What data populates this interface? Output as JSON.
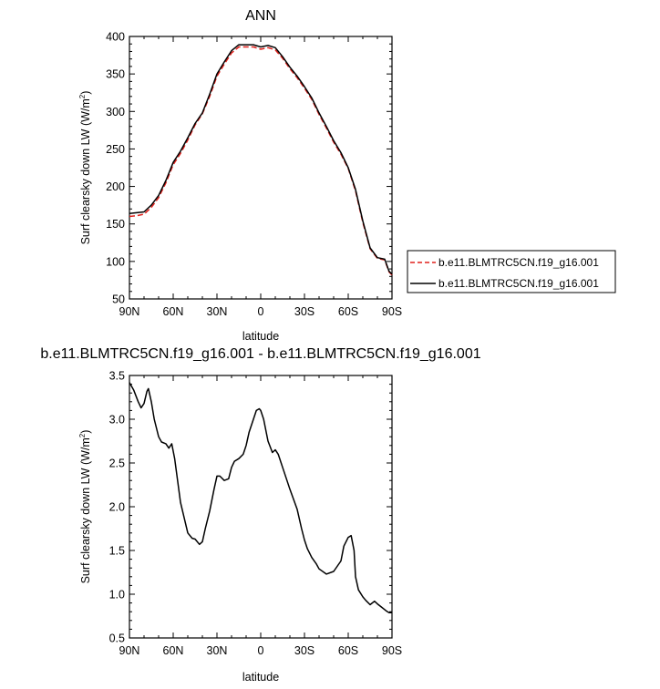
{
  "chart_data": [
    {
      "type": "line",
      "title": "ANN",
      "xlabel": "latitude",
      "ylabel": "Surf clearsky down LW (W/m",
      "ylabel_sup": "2",
      "ylabel_end": ")",
      "xlim": [
        90,
        -90
      ],
      "ylim": [
        50,
        400
      ],
      "xticks": [
        {
          "value": 90,
          "label": "90N"
        },
        {
          "value": 60,
          "label": "60N"
        },
        {
          "value": 30,
          "label": "30N"
        },
        {
          "value": 0,
          "label": "0"
        },
        {
          "value": -30,
          "label": "30S"
        },
        {
          "value": -60,
          "label": "60S"
        },
        {
          "value": -90,
          "label": "90S"
        }
      ],
      "yticks": [
        50,
        100,
        150,
        200,
        250,
        300,
        350,
        400
      ],
      "legend_position": "right",
      "series": [
        {
          "name": "b.e11.BLMTRC5CN.f19_g16.001",
          "color": "#e0201b",
          "dash": "dashed",
          "x": [
            90,
            85,
            80,
            75,
            70,
            65,
            60,
            55,
            50,
            45,
            40,
            35,
            30,
            25,
            20,
            15,
            10,
            5,
            0,
            -5,
            -10,
            -15,
            -20,
            -25,
            -30,
            -35,
            -40,
            -45,
            -50,
            -55,
            -60,
            -65,
            -70,
            -75,
            -80,
            -85,
            -88,
            -90
          ],
          "y": [
            160,
            161,
            163,
            172,
            185,
            205,
            229,
            244,
            262,
            282,
            297,
            320,
            347,
            363,
            378,
            386,
            386,
            386,
            383,
            385,
            382,
            371,
            357,
            345,
            331,
            316,
            296,
            278,
            259,
            243,
            224,
            194,
            152,
            117,
            104,
            102,
            86,
            82
          ]
        },
        {
          "name": "b.e11.BLMTRC5CN.f19_g16.001",
          "color": "#000000",
          "dash": "solid",
          "x": [
            90,
            85,
            80,
            75,
            70,
            65,
            60,
            55,
            50,
            45,
            40,
            35,
            30,
            25,
            20,
            15,
            10,
            5,
            0,
            -5,
            -10,
            -15,
            -20,
            -25,
            -30,
            -35,
            -40,
            -45,
            -50,
            -55,
            -60,
            -65,
            -70,
            -75,
            -80,
            -85,
            -88,
            -90
          ],
          "y": [
            164,
            165,
            166,
            175,
            188,
            208,
            232,
            247,
            265,
            284,
            298,
            323,
            350,
            366,
            381,
            389,
            389,
            389,
            386,
            388,
            385,
            373,
            359,
            347,
            333,
            318,
            298,
            280,
            261,
            245,
            225,
            196,
            154,
            118,
            105,
            103,
            87,
            83
          ]
        }
      ]
    },
    {
      "type": "line",
      "title": "b.e11.BLMTRC5CN.f19_g16.001 - b.e11.BLMTRC5CN.f19_g16.001",
      "xlabel": "latitude",
      "ylabel": "Surf clearsky down LW (W/m",
      "ylabel_sup": "2",
      "ylabel_end": ")",
      "xlim": [
        90,
        -90
      ],
      "ylim": [
        0.5,
        3.5
      ],
      "xticks": [
        {
          "value": 90,
          "label": "90N"
        },
        {
          "value": 60,
          "label": "60N"
        },
        {
          "value": 30,
          "label": "30N"
        },
        {
          "value": 0,
          "label": "0"
        },
        {
          "value": -30,
          "label": "30S"
        },
        {
          "value": -60,
          "label": "60S"
        },
        {
          "value": -90,
          "label": "90S"
        }
      ],
      "yticks": [
        "0.5",
        "1.0",
        "1.5",
        "2.0",
        "2.5",
        "3.0",
        "3.5"
      ],
      "series": [
        {
          "color": "#000000",
          "dash": "solid",
          "x": [
            90,
            87,
            84,
            82,
            80,
            78,
            77,
            75,
            73,
            70,
            68,
            65,
            63,
            61,
            59,
            57,
            55,
            50,
            47,
            45,
            42,
            40,
            38,
            35,
            32,
            30,
            28,
            25,
            22,
            20,
            18,
            15,
            12,
            10,
            8,
            5,
            3,
            1,
            0,
            -2,
            -5,
            -8,
            -10,
            -12,
            -15,
            -18,
            -20,
            -25,
            -28,
            -30,
            -32,
            -35,
            -38,
            -40,
            -45,
            -50,
            -55,
            -57,
            -60,
            -62,
            -64,
            -65,
            -67,
            -70,
            -72,
            -75,
            -78,
            -80,
            -83,
            -86,
            -88,
            -90
          ],
          "y": [
            3.42,
            3.33,
            3.2,
            3.13,
            3.18,
            3.32,
            3.35,
            3.2,
            3.0,
            2.8,
            2.74,
            2.72,
            2.67,
            2.72,
            2.55,
            2.3,
            2.05,
            1.7,
            1.64,
            1.63,
            1.57,
            1.6,
            1.75,
            1.95,
            2.2,
            2.35,
            2.35,
            2.3,
            2.32,
            2.45,
            2.52,
            2.55,
            2.6,
            2.7,
            2.85,
            3.0,
            3.1,
            3.12,
            3.1,
            3.0,
            2.75,
            2.62,
            2.65,
            2.6,
            2.45,
            2.3,
            2.2,
            1.97,
            1.75,
            1.62,
            1.52,
            1.42,
            1.35,
            1.29,
            1.23,
            1.26,
            1.38,
            1.55,
            1.65,
            1.67,
            1.5,
            1.2,
            1.05,
            0.97,
            0.93,
            0.88,
            0.92,
            0.89,
            0.85,
            0.81,
            0.79,
            0.79
          ]
        }
      ]
    }
  ]
}
